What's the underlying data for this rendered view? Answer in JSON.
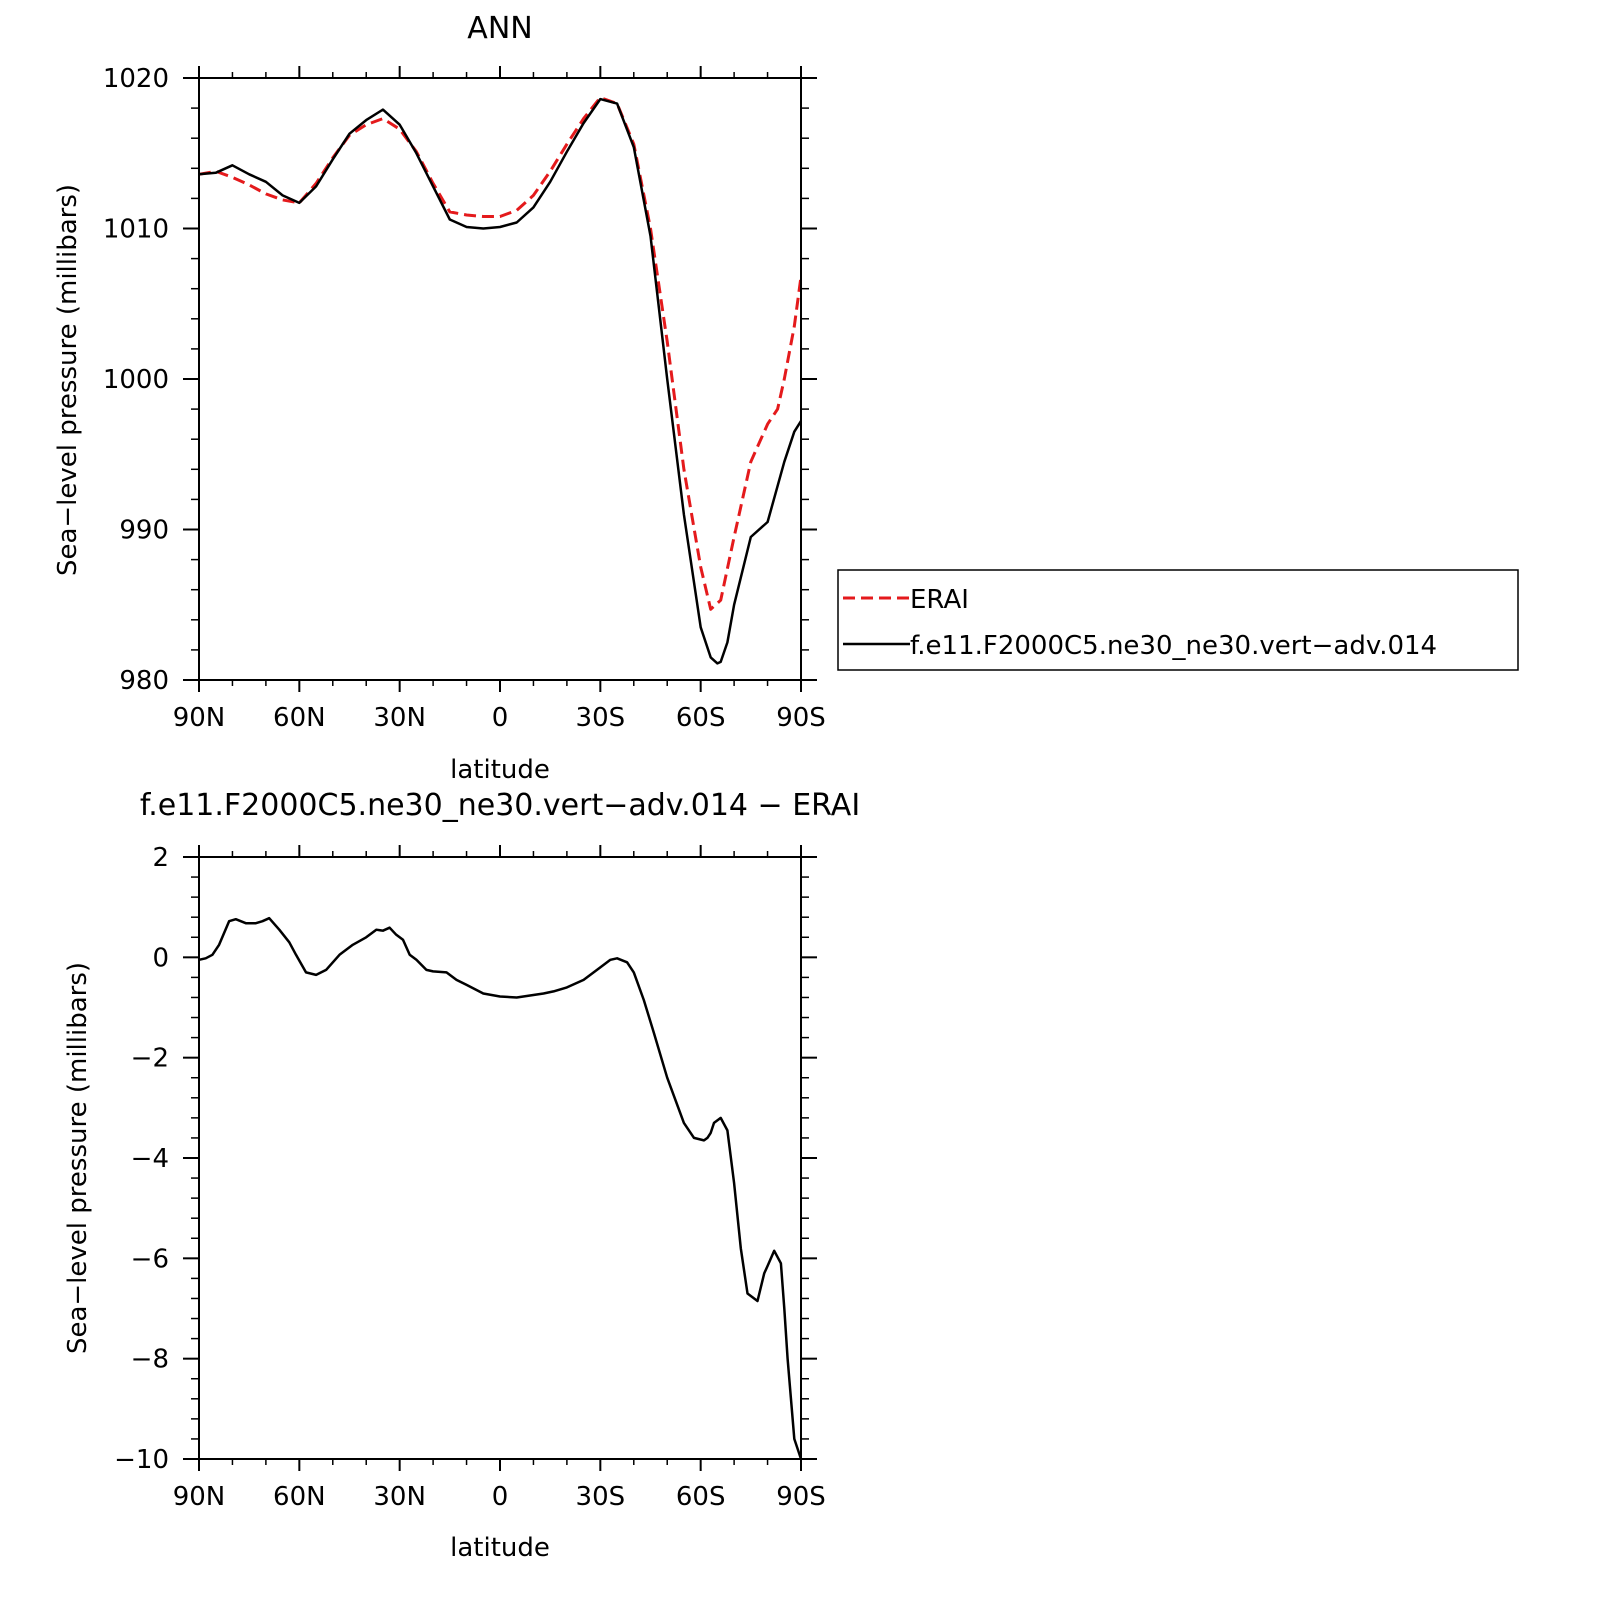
{
  "chart_data": [
    {
      "type": "line",
      "title": "ANN",
      "xlabel": "latitude",
      "ylabel": "Sea−level pressure (millibars)",
      "xlim": [
        -90,
        90
      ],
      "ylim": [
        980,
        1020
      ],
      "x_ticks": [
        -90,
        -60,
        -30,
        0,
        30,
        60,
        90
      ],
      "x_tick_labels": [
        "90N",
        "60N",
        "30N",
        "0",
        "30S",
        "60S",
        "90S"
      ],
      "y_ticks": [
        980,
        990,
        1000,
        1010,
        1020
      ],
      "y_tick_labels": [
        "980",
        "990",
        "1000",
        "1010",
        "1020"
      ],
      "grid": false,
      "legend_position": "right",
      "series": [
        {
          "name": "ERAI",
          "color": "#e41a1c",
          "dash": "dashed",
          "x": [
            -90,
            -85,
            -80,
            -75,
            -70,
            -65,
            -60,
            -55,
            -50,
            -45,
            -40,
            -35,
            -30,
            -25,
            -20,
            -15,
            -10,
            -5,
            0,
            5,
            10,
            15,
            20,
            25,
            30,
            35,
            40,
            45,
            50,
            55,
            60,
            63,
            66,
            70,
            75,
            80,
            83,
            85,
            88,
            90
          ],
          "y": [
            1013.6,
            1013.8,
            1013.4,
            1012.9,
            1012.3,
            1011.9,
            1011.7,
            1013.0,
            1014.7,
            1016.2,
            1016.9,
            1017.3,
            1016.6,
            1015.1,
            1013.0,
            1011.1,
            1010.9,
            1010.8,
            1010.8,
            1011.2,
            1012.2,
            1013.8,
            1015.6,
            1017.3,
            1018.7,
            1018.3,
            1015.6,
            1010.0,
            1002.5,
            994.0,
            987.5,
            984.7,
            985.3,
            989.5,
            994.5,
            997.0,
            998.0,
            1000.0,
            1003.5,
            1006.8
          ]
        },
        {
          "name": "f.e11.F2000C5.ne30_ne30.vert−adv.014",
          "color": "#000000",
          "dash": "solid",
          "x": [
            -90,
            -85,
            -80,
            -75,
            -70,
            -65,
            -60,
            -55,
            -50,
            -45,
            -40,
            -35,
            -30,
            -25,
            -20,
            -15,
            -10,
            -5,
            0,
            5,
            10,
            15,
            20,
            25,
            30,
            35,
            40,
            45,
            50,
            55,
            60,
            63,
            65,
            66,
            68,
            70,
            75,
            80,
            85,
            88,
            90
          ],
          "y": [
            1013.6,
            1013.7,
            1014.2,
            1013.6,
            1013.1,
            1012.2,
            1011.7,
            1012.8,
            1014.6,
            1016.3,
            1017.2,
            1017.9,
            1016.9,
            1015.0,
            1012.8,
            1010.6,
            1010.1,
            1010.0,
            1010.1,
            1010.4,
            1011.4,
            1013.1,
            1015.1,
            1017.0,
            1018.6,
            1018.3,
            1015.4,
            1009.5,
            1000.0,
            991.0,
            983.5,
            981.5,
            981.1,
            981.2,
            982.5,
            985.0,
            989.5,
            990.5,
            994.5,
            996.5,
            997.2
          ]
        }
      ]
    },
    {
      "type": "line",
      "title": "f.e11.F2000C5.ne30_ne30.vert−adv.014 − ERAI",
      "xlabel": "latitude",
      "ylabel": "Sea−level pressure (millibars)",
      "xlim": [
        -90,
        90
      ],
      "ylim": [
        -10,
        2
      ],
      "x_ticks": [
        -90,
        -60,
        -30,
        0,
        30,
        60,
        90
      ],
      "x_tick_labels": [
        "90N",
        "60N",
        "30N",
        "0",
        "30S",
        "60S",
        "90S"
      ],
      "y_ticks": [
        -10,
        -8,
        -6,
        -4,
        -2,
        0,
        2
      ],
      "y_tick_labels": [
        "−10",
        "−8",
        "−6",
        "−4",
        "−2",
        "0",
        "2"
      ],
      "grid": false,
      "series": [
        {
          "color": "#000000",
          "dash": "solid",
          "x": [
            -90,
            -88,
            -86,
            -84,
            -81,
            -79,
            -76,
            -73,
            -71,
            -69,
            -66,
            -63,
            -61,
            -58,
            -55,
            -52,
            -48,
            -44,
            -40,
            -37,
            -35,
            -33,
            -31,
            -29,
            -27,
            -25,
            -22,
            -20,
            -16,
            -13,
            -10,
            -5,
            0,
            5,
            10,
            13,
            16,
            20,
            25,
            30,
            33,
            35,
            38,
            40,
            43,
            46,
            50,
            55,
            58,
            61,
            62,
            63,
            64,
            66,
            68,
            70,
            72,
            74,
            77,
            79,
            80,
            82,
            84,
            85,
            86,
            88,
            90
          ],
          "y": [
            -0.05,
            -0.02,
            0.05,
            0.25,
            0.72,
            0.76,
            0.68,
            0.68,
            0.72,
            0.78,
            0.55,
            0.3,
            0.05,
            -0.3,
            -0.35,
            -0.25,
            0.05,
            0.25,
            0.4,
            0.55,
            0.53,
            0.59,
            0.45,
            0.35,
            0.05,
            -0.05,
            -0.25,
            -0.28,
            -0.3,
            -0.45,
            -0.55,
            -0.72,
            -0.78,
            -0.8,
            -0.75,
            -0.72,
            -0.68,
            -0.6,
            -0.45,
            -0.2,
            -0.05,
            -0.02,
            -0.1,
            -0.3,
            -0.85,
            -1.5,
            -2.4,
            -3.3,
            -3.6,
            -3.65,
            -3.6,
            -3.5,
            -3.3,
            -3.2,
            -3.45,
            -4.5,
            -5.8,
            -6.7,
            -6.85,
            -6.3,
            -6.15,
            -5.85,
            -6.1,
            -7.0,
            -8.0,
            -9.6,
            -10.0
          ]
        }
      ]
    }
  ]
}
